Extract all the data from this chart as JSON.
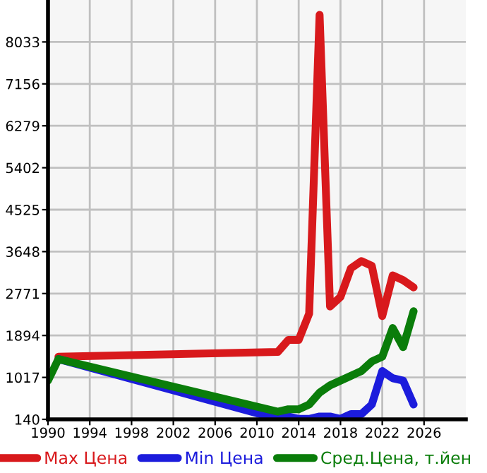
{
  "chart_data": {
    "type": "line",
    "xlim": [
      1990,
      2030
    ],
    "xticks": [
      1990,
      1994,
      1998,
      2002,
      2006,
      2010,
      2014,
      2018,
      2022,
      2026
    ],
    "ylim": [
      140,
      8910
    ],
    "yticks": [
      140,
      1017,
      1894,
      2771,
      3648,
      4525,
      5402,
      6279,
      7156,
      8033
    ],
    "grid": true,
    "legend": "bottom",
    "marker": "none",
    "line_style": "solid",
    "series": [
      {
        "name": "Max Цена",
        "color": "#d8191c",
        "x": [
          1991,
          2012,
          2013,
          2014,
          2015,
          2016,
          2017,
          2018,
          2019,
          2020,
          2021,
          2022,
          2023,
          2024,
          2025
        ],
        "values": [
          1450,
          1550,
          1800,
          1800,
          2350,
          8600,
          2500,
          2700,
          3300,
          3450,
          3350,
          2300,
          3150,
          3050,
          2900
        ]
      },
      {
        "name": "Min Цена",
        "color": "#1c1cdc",
        "x": [
          1991,
          2012,
          2013,
          2014,
          2015,
          2016,
          2017,
          2018,
          2019,
          2020,
          2021,
          2022,
          2023,
          2024,
          2025
        ],
        "values": [
          1400,
          150,
          200,
          150,
          150,
          200,
          200,
          150,
          250,
          250,
          450,
          1150,
          1000,
          950,
          450
        ]
      },
      {
        "name": "Сред.Цена, т.йен",
        "color": "#0a7d0a",
        "x": [
          1990,
          1991,
          2012,
          2013,
          2014,
          2015,
          2016,
          2017,
          2018,
          2019,
          2020,
          2021,
          2022,
          2023,
          2024,
          2025
        ],
        "values": [
          950,
          1400,
          300,
          350,
          350,
          450,
          700,
          850,
          950,
          1050,
          1150,
          1350,
          1450,
          2050,
          1650,
          2400
        ]
      }
    ]
  }
}
